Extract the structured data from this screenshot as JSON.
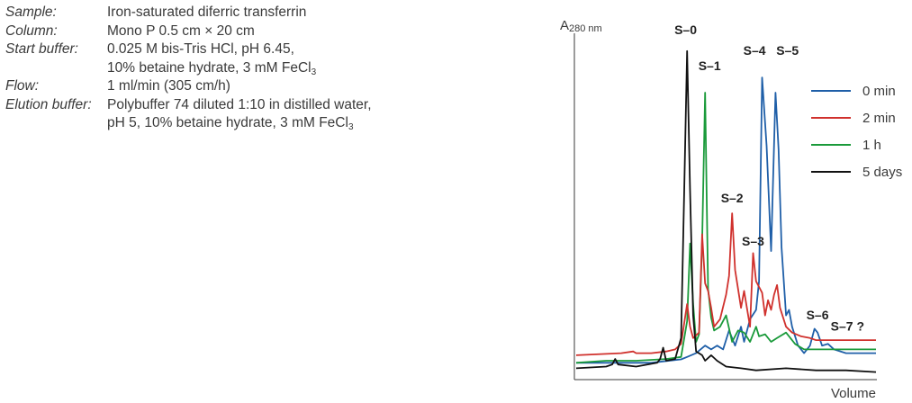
{
  "parameters": [
    {
      "label": "Sample:",
      "lines": [
        {
          "text": "Iron-saturated diferric transferrin"
        }
      ]
    },
    {
      "label": "Column:",
      "lines": [
        {
          "text": "Mono P 0.5 cm × 20 cm"
        }
      ]
    },
    {
      "label": "Start buffer:",
      "lines": [
        {
          "text": "0.025 M bis-Tris HCl, pH 6.45,"
        },
        {
          "text": "10% betaine hydrate, 3 mM FeCl",
          "sub": "3"
        }
      ]
    },
    {
      "label": "Flow:",
      "lines": [
        {
          "text": "1 ml/min (305 cm/h)"
        }
      ]
    },
    {
      "label": "Elution buffer:",
      "lines": [
        {
          "text": "Polybuffer 74 diluted 1:10 in distilled water,"
        },
        {
          "text": "pH 5, 10% betaine hydrate, 3 mM FeCl",
          "sub": "3"
        }
      ]
    }
  ],
  "chart_data": {
    "type": "line",
    "ylabel": "A",
    "ylabel_sub": "280 nm",
    "xlabel": "Volume",
    "xlim": [
      0,
      100
    ],
    "ylim": [
      0,
      100
    ],
    "grid": false,
    "legend_position": "right",
    "series": [
      {
        "name": "0 min",
        "color": "#1f5fa8",
        "points": [
          [
            0,
            4.9
          ],
          [
            15,
            4.9
          ],
          [
            25,
            4.9
          ],
          [
            33,
            5.7
          ],
          [
            35,
            5.9
          ],
          [
            37,
            6.6
          ],
          [
            40,
            7.7
          ],
          [
            43,
            9.9
          ],
          [
            45,
            8.8
          ],
          [
            47,
            9.9
          ],
          [
            49,
            8.8
          ],
          [
            51,
            14.3
          ],
          [
            53,
            9.9
          ],
          [
            55,
            15.4
          ],
          [
            56,
            11.0
          ],
          [
            58,
            17.6
          ],
          [
            60,
            20.3
          ],
          [
            61,
            28.6
          ],
          [
            62,
            87.9
          ],
          [
            63.5,
            68.1
          ],
          [
            65,
            37.4
          ],
          [
            66.5,
            83.5
          ],
          [
            67.5,
            67.0
          ],
          [
            68.5,
            38.5
          ],
          [
            70,
            18.7
          ],
          [
            71,
            20.3
          ],
          [
            72,
            15.4
          ],
          [
            74,
            9.9
          ],
          [
            76,
            7.7
          ],
          [
            78,
            9.9
          ],
          [
            79.5,
            14.8
          ],
          [
            80.5,
            13.7
          ],
          [
            82,
            9.9
          ],
          [
            84,
            10.4
          ],
          [
            86,
            8.8
          ],
          [
            90,
            7.7
          ],
          [
            100,
            7.7
          ]
        ]
      },
      {
        "name": "2 min",
        "color": "#d0312d",
        "points": [
          [
            0,
            7.1
          ],
          [
            15,
            7.7
          ],
          [
            19,
            8.2
          ],
          [
            20,
            7.7
          ],
          [
            25,
            7.7
          ],
          [
            30,
            8.2
          ],
          [
            33,
            8.8
          ],
          [
            35,
            10.4
          ],
          [
            37,
            22.0
          ],
          [
            38,
            15.4
          ],
          [
            39,
            12.1
          ],
          [
            41,
            13.7
          ],
          [
            42,
            42.3
          ],
          [
            43,
            28.0
          ],
          [
            44,
            25.8
          ],
          [
            45,
            20.9
          ],
          [
            46,
            15.4
          ],
          [
            48,
            17.6
          ],
          [
            50,
            24.7
          ],
          [
            51,
            30.2
          ],
          [
            52,
            48.4
          ],
          [
            53,
            31.9
          ],
          [
            55,
            20.9
          ],
          [
            56,
            25.8
          ],
          [
            58,
            15.4
          ],
          [
            59,
            36.8
          ],
          [
            60,
            28.6
          ],
          [
            62,
            25.3
          ],
          [
            63,
            18.7
          ],
          [
            64,
            23.1
          ],
          [
            65,
            20.3
          ],
          [
            66,
            24.7
          ],
          [
            67,
            27.5
          ],
          [
            68,
            20.9
          ],
          [
            70,
            15.4
          ],
          [
            72,
            13.7
          ],
          [
            75,
            12.6
          ],
          [
            78,
            12.1
          ],
          [
            80,
            11.5
          ],
          [
            90,
            11.5
          ],
          [
            100,
            11.5
          ]
        ]
      },
      {
        "name": "1 h",
        "color": "#1a9a3a",
        "points": [
          [
            0,
            4.9
          ],
          [
            10,
            5.5
          ],
          [
            20,
            5.5
          ],
          [
            30,
            6.0
          ],
          [
            35,
            6.6
          ],
          [
            37,
            17.0
          ],
          [
            38,
            39.6
          ],
          [
            39,
            22.0
          ],
          [
            40,
            11.0
          ],
          [
            41,
            13.2
          ],
          [
            42,
            40.1
          ],
          [
            43,
            83.5
          ],
          [
            44,
            26.4
          ],
          [
            45,
            18.1
          ],
          [
            46,
            14.3
          ],
          [
            48,
            15.4
          ],
          [
            50,
            18.7
          ],
          [
            52,
            11.0
          ],
          [
            54,
            14.3
          ],
          [
            56,
            13.7
          ],
          [
            58,
            11.0
          ],
          [
            60,
            15.4
          ],
          [
            61,
            12.6
          ],
          [
            63,
            13.2
          ],
          [
            65,
            11.0
          ],
          [
            67,
            12.1
          ],
          [
            70,
            13.7
          ],
          [
            73,
            10.4
          ],
          [
            76,
            8.8
          ],
          [
            80,
            8.8
          ],
          [
            90,
            8.8
          ],
          [
            100,
            8.8
          ]
        ]
      },
      {
        "name": "5 days",
        "color": "#111111",
        "points": [
          [
            0,
            3.3
          ],
          [
            10,
            3.8
          ],
          [
            12,
            4.4
          ],
          [
            13,
            6.0
          ],
          [
            14,
            4.4
          ],
          [
            20,
            3.8
          ],
          [
            27,
            4.9
          ],
          [
            28,
            6.0
          ],
          [
            29,
            9.3
          ],
          [
            30,
            5.5
          ],
          [
            33,
            6.0
          ],
          [
            35,
            12.1
          ],
          [
            36,
            53.8
          ],
          [
            37,
            95.6
          ],
          [
            38,
            54.9
          ],
          [
            39,
            18.7
          ],
          [
            40,
            8.2
          ],
          [
            42,
            7.1
          ],
          [
            43,
            5.5
          ],
          [
            45,
            7.1
          ],
          [
            47,
            5.5
          ],
          [
            50,
            3.8
          ],
          [
            55,
            3.3
          ],
          [
            60,
            2.7
          ],
          [
            70,
            3.3
          ],
          [
            80,
            2.7
          ],
          [
            90,
            2.7
          ],
          [
            100,
            2.2
          ]
        ]
      }
    ],
    "annotations": [
      {
        "text": "S–0",
        "x": 36.5,
        "y": 100.5
      },
      {
        "text": "S–1",
        "x": 44.5,
        "y": 90.1
      },
      {
        "text": "S–2",
        "x": 52,
        "y": 51.6
      },
      {
        "text": "S–3",
        "x": 59,
        "y": 39.0
      },
      {
        "text": "S–4",
        "x": 59.5,
        "y": 94.5
      },
      {
        "text": "S–5",
        "x": 70.5,
        "y": 94.5
      },
      {
        "text": "S–6",
        "x": 80.5,
        "y": 17.6
      },
      {
        "text": "S–7 ?",
        "x": 90.5,
        "y": 14.3
      }
    ]
  }
}
